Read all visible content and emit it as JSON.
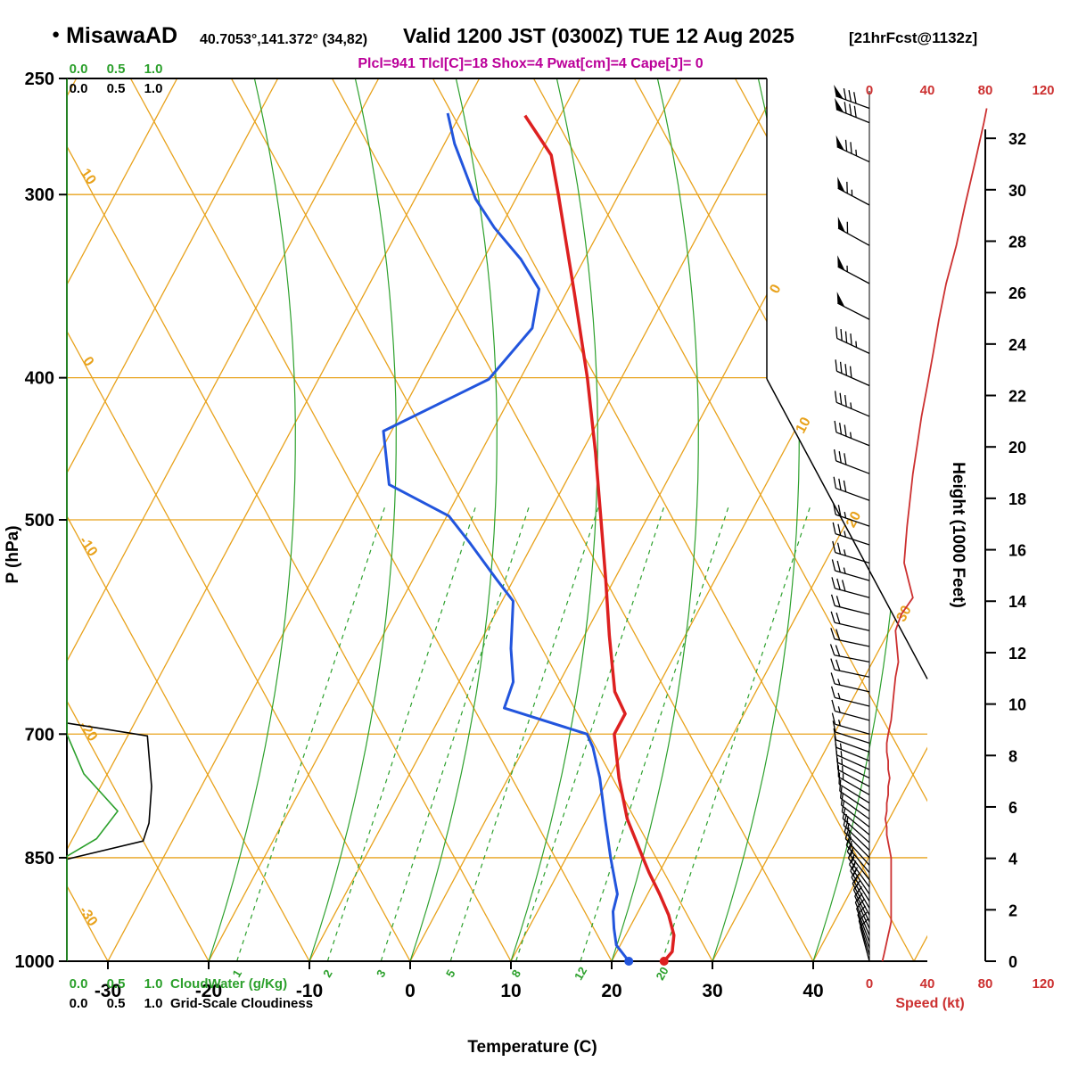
{
  "header": {
    "bullet": "●",
    "station": "MisawaAD",
    "coords": "40.7053°,141.372° (34,82)",
    "valid": "Valid 1200 JST (0300Z) TUE 12 Aug 2025",
    "fcst": "[21hrFcst@1132z]",
    "params": "Plcl=941 Tlcl[C]=18 Shox=4 Pwat[cm]=4 Cape[J]= 0"
  },
  "colors": {
    "orange": "#E8A21C",
    "green": "#2CA02C",
    "red": "#DD2020",
    "speed_red": "#CC3030",
    "blue": "#2255DD",
    "magenta": "#BB0099",
    "black": "#000000"
  },
  "axes": {
    "pressure": {
      "label": "P (hPa)",
      "ticks": [
        250,
        300,
        400,
        500,
        700,
        850,
        1000
      ]
    },
    "temperature": {
      "label": "Temperature (C)",
      "ticks": [
        -30,
        -20,
        -10,
        0,
        10,
        20,
        30,
        40
      ]
    },
    "height": {
      "label": "Height (1000 Feet)",
      "ticks": [
        0,
        2,
        4,
        6,
        8,
        10,
        12,
        14,
        16,
        18,
        20,
        22,
        24,
        26,
        28,
        30,
        32
      ]
    },
    "speed": {
      "label": "Speed (kt)",
      "ticks": [
        0,
        40,
        80,
        120
      ]
    }
  },
  "scales": {
    "cloudwater_label": "CloudWater (g/Kg)",
    "cloudiness_label": "Grid-Scale Cloudiness",
    "scale_values": [
      "0.0",
      "0.5",
      "1.0"
    ]
  },
  "chart_data": {
    "type": "line",
    "title": "Skew-T log-P sounding, MisawaAD, Valid 1200 JST (0300Z) TUE 12 Aug 2025",
    "skewt": {
      "pressure_range_hpa": [
        250,
        1000
      ],
      "isotherm_labels_right_c": [
        0,
        10,
        20,
        30
      ],
      "dry_adiabat_labels_left_c": [
        10,
        0,
        -10,
        -20,
        -30
      ],
      "mixing_ratio_g_kg": [
        1,
        2,
        3,
        5,
        8,
        12,
        20
      ],
      "mixing_ratio_td_at_1000hpa_c": [
        -17.2,
        -8.2,
        -2.9,
        4.0,
        10.5,
        16.9,
        25.0
      ],
      "surface_temperature_c": 25.2,
      "surface_dewpoint_c": 21.7,
      "temperature_profile_p_c": [
        [
          1000,
          25.2
        ],
        [
          985,
          25.5
        ],
        [
          960,
          24.8
        ],
        [
          930,
          23.2
        ],
        [
          900,
          21.2
        ],
        [
          870,
          19.0
        ],
        [
          850,
          17.6
        ],
        [
          800,
          14.0
        ],
        [
          750,
          11.0
        ],
        [
          700,
          8.2
        ],
        [
          678,
          8.2
        ],
        [
          655,
          6.0
        ],
        [
          600,
          2.5
        ],
        [
          550,
          -0.8
        ],
        [
          500,
          -4.5
        ],
        [
          450,
          -8.6
        ],
        [
          400,
          -13.4
        ],
        [
          350,
          -19.2
        ],
        [
          300,
          -26.0
        ],
        [
          282,
          -28.8
        ],
        [
          265,
          -33.5
        ]
      ],
      "dewpoint_profile_p_c": [
        [
          1000,
          21.7
        ],
        [
          975,
          19.6
        ],
        [
          950,
          18.5
        ],
        [
          925,
          17.5
        ],
        [
          900,
          17.0
        ],
        [
          850,
          14.4
        ],
        [
          800,
          11.8
        ],
        [
          750,
          9.1
        ],
        [
          715,
          6.8
        ],
        [
          700,
          5.5
        ],
        [
          672,
          -4.1
        ],
        [
          645,
          -4.6
        ],
        [
          612,
          -6.6
        ],
        [
          568,
          -8.9
        ],
        [
          549,
          -11.7
        ],
        [
          519,
          -16.2
        ],
        [
          497,
          -19.8
        ],
        [
          473,
          -27.4
        ],
        [
          435,
          -30.8
        ],
        [
          401,
          -23.1
        ],
        [
          370,
          -21.5
        ],
        [
          348,
          -22.9
        ],
        [
          332,
          -26.3
        ],
        [
          316,
          -30.6
        ],
        [
          302,
          -34.0
        ],
        [
          277,
          -39.0
        ],
        [
          264,
          -41.3
        ]
      ]
    },
    "wind_barbs_p_dir_kt": [
      [
        1000,
        345,
        9
      ],
      [
        990,
        343,
        10
      ],
      [
        980,
        341,
        11
      ],
      [
        970,
        339,
        12
      ],
      [
        960,
        337,
        13
      ],
      [
        950,
        336,
        14
      ],
      [
        940,
        334,
        15
      ],
      [
        930,
        332,
        15
      ],
      [
        920,
        330,
        15
      ],
      [
        910,
        328,
        15
      ],
      [
        900,
        326,
        15
      ],
      [
        890,
        324,
        15
      ],
      [
        880,
        322,
        15
      ],
      [
        870,
        320,
        15
      ],
      [
        860,
        318,
        15
      ],
      [
        850,
        316,
        15
      ],
      [
        840,
        314,
        14
      ],
      [
        830,
        312,
        13
      ],
      [
        820,
        310,
        12
      ],
      [
        810,
        308,
        12
      ],
      [
        800,
        306,
        11
      ],
      [
        790,
        304,
        12
      ],
      [
        780,
        302,
        12
      ],
      [
        770,
        300,
        13
      ],
      [
        760,
        298,
        13
      ],
      [
        750,
        296,
        14
      ],
      [
        740,
        294,
        13
      ],
      [
        730,
        292,
        13
      ],
      [
        720,
        290,
        12
      ],
      [
        710,
        288,
        12
      ],
      [
        700,
        286,
        13
      ],
      [
        685,
        285,
        15
      ],
      [
        670,
        284,
        16
      ],
      [
        655,
        283,
        17
      ],
      [
        640,
        282,
        18
      ],
      [
        625,
        281,
        20
      ],
      [
        610,
        282,
        19
      ],
      [
        595,
        283,
        18
      ],
      [
        580,
        284,
        22
      ],
      [
        565,
        285,
        30
      ],
      [
        550,
        286,
        27
      ],
      [
        535,
        287,
        24
      ],
      [
        520,
        288,
        25
      ],
      [
        505,
        289,
        26
      ],
      [
        485,
        290,
        28
      ],
      [
        465,
        291,
        30
      ],
      [
        445,
        292,
        33
      ],
      [
        425,
        293,
        36
      ],
      [
        405,
        294,
        40
      ],
      [
        385,
        295,
        44
      ],
      [
        365,
        297,
        48
      ],
      [
        345,
        298,
        53
      ],
      [
        325,
        299,
        60
      ],
      [
        305,
        298,
        66
      ],
      [
        285,
        295,
        73
      ],
      [
        268,
        292,
        79
      ],
      [
        262,
        290,
        81
      ]
    ],
    "cloudiness_profile_p_frac": [
      [
        688,
        0
      ],
      [
        702,
        0.95
      ],
      [
        760,
        1.0
      ],
      [
        805,
        0.97
      ],
      [
        828,
        0.9
      ],
      [
        852,
        0
      ]
    ],
    "cloudwater_profile_p_gkg": [
      [
        700,
        0
      ],
      [
        745,
        0.2
      ],
      [
        790,
        0.6
      ],
      [
        825,
        0.35
      ],
      [
        848,
        0
      ]
    ]
  }
}
